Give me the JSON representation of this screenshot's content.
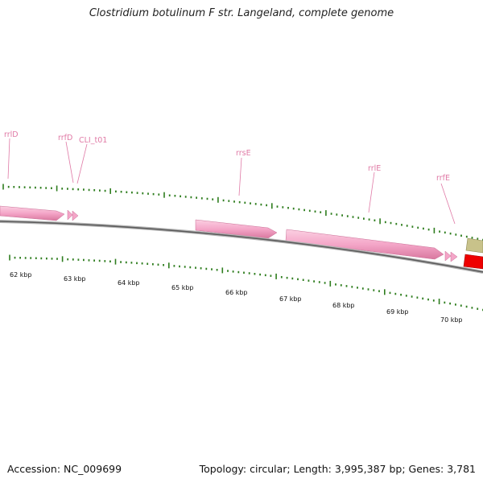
{
  "title": "Clostridium botulinum F str. Langeland, complete genome",
  "footer": {
    "accession": "Accession: NC_009699",
    "summary": "Topology: circular; Length: 3,995,387 bp; Genes: 3,781"
  },
  "scale": {
    "unit": "kbp",
    "labels": [
      "62 kbp",
      "63 kbp",
      "64 kbp",
      "65 kbp",
      "66 kbp",
      "67 kbp",
      "68 kbp",
      "69 kbp",
      "70 kbp"
    ]
  },
  "genes": [
    {
      "name": "rrlD"
    },
    {
      "name": "rrfD"
    },
    {
      "name": "CLI_t01"
    },
    {
      "name": "rrsE"
    },
    {
      "name": "rrlE"
    },
    {
      "name": "rrfE"
    }
  ],
  "colors": {
    "rRNA": "#f4a6c8",
    "tick": "#2e7d1e",
    "backbone": "#7a7a7a",
    "label": "#e07aa6",
    "olive_feature": "#c8c28a",
    "red_feature": "#ee0000"
  }
}
